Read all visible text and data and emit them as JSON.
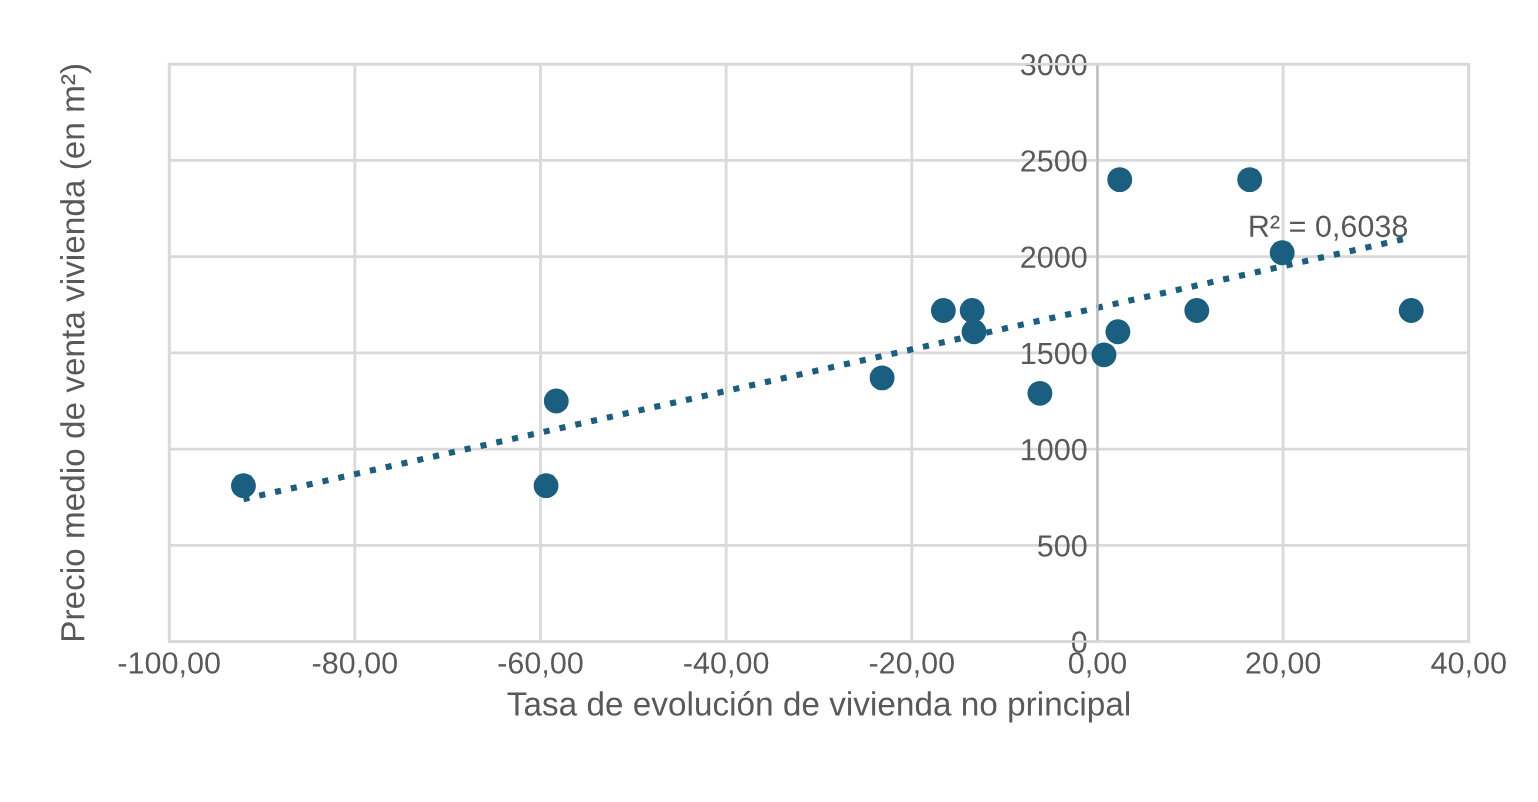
{
  "chart_data": {
    "type": "scatter",
    "xlabel": "Tasa de evolución de vivienda no principal",
    "ylabel": "Precio medio de venta vivienda (en m²)",
    "series": [
      {
        "color": "#1a5f80",
        "x": [
          -92.0,
          -59.4,
          -58.3,
          -23.2,
          -16.6,
          -13.5,
          -13.3,
          -6.2,
          0.7,
          2.2,
          2.4,
          10.7,
          16.4,
          19.9,
          33.8
        ],
        "values": [
          810,
          810,
          1250,
          1370,
          1720,
          1720,
          1610,
          1290,
          1490,
          1610,
          2400,
          1720,
          2400,
          2020,
          1720
        ]
      },
      {
        "type": "line",
        "color": "#1a5f80",
        "line_style": "dotted",
        "marker": "none",
        "x": [
          -92.0,
          32.9
        ],
        "values": [
          740,
          2090
        ]
      }
    ],
    "annotations": [
      "R² = 0,6038"
    ],
    "xlim": [
      -100,
      40
    ],
    "ylim": [
      0,
      3000
    ],
    "xticks": [
      {
        "value": -100,
        "label": "-100,00"
      },
      {
        "value": -80,
        "label": "-80,00"
      },
      {
        "value": -60,
        "label": "-60,00"
      },
      {
        "value": -40,
        "label": "-40,00"
      },
      {
        "value": -20,
        "label": "-20,00"
      },
      {
        "value": 0,
        "label": "0,00"
      },
      {
        "value": 20,
        "label": "20,00"
      },
      {
        "value": 40,
        "label": "40,00"
      }
    ],
    "yticks": [
      0,
      500,
      1000,
      1500,
      2000,
      2500,
      3000
    ],
    "grid": true,
    "marker": "circle",
    "legend": false
  }
}
